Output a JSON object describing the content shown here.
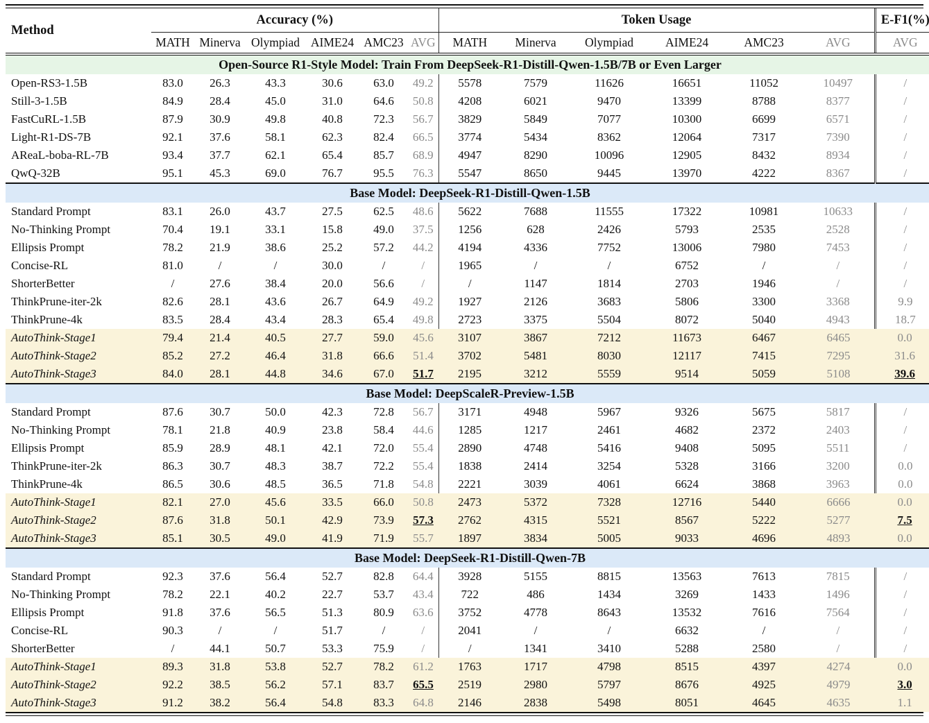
{
  "table": {
    "method_header": "Method",
    "group_acc": "Accuracy (%)",
    "group_tok": "Token Usage",
    "group_ef1": "E-F1(%)",
    "subheaders_acc": [
      "MATH",
      "Minerva",
      "Olympiad",
      "AIME24",
      "AMC23",
      "AVG"
    ],
    "subheaders_tok": [
      "MATH",
      "Minerva",
      "Olympiad",
      "AIME24",
      "AMC23",
      "AVG"
    ],
    "subheader_ef1": "AVG",
    "colors": {
      "green_band": "#e6f5e6",
      "blue_band": "#dbe9f8",
      "cream_band": "#faf3da",
      "muted_text": "#8b8b8b"
    },
    "sections": [
      {
        "title": "Open-Source R1-Style Model: Train From DeepSeek-R1-Distill-Qwen-1.5B/7B or Even Larger",
        "band": "green",
        "rows": [
          {
            "method": "Open-RS3-1.5B",
            "cream": false,
            "acc": [
              "83.0",
              "26.3",
              "43.3",
              "30.6",
              "63.0",
              "49.2"
            ],
            "tok": [
              "5578",
              "7579",
              "11626",
              "16651",
              "11052",
              "10497"
            ],
            "ef1": "/",
            "hl_acc": false,
            "hl_ef1": false
          },
          {
            "method": "Still-3-1.5B",
            "cream": false,
            "acc": [
              "84.9",
              "28.4",
              "45.0",
              "31.0",
              "64.6",
              "50.8"
            ],
            "tok": [
              "4208",
              "6021",
              "9470",
              "13399",
              "8788",
              "8377"
            ],
            "ef1": "/",
            "hl_acc": false,
            "hl_ef1": false
          },
          {
            "method": "FastCuRL-1.5B",
            "cream": false,
            "acc": [
              "87.9",
              "30.9",
              "49.8",
              "40.8",
              "72.3",
              "56.7"
            ],
            "tok": [
              "3829",
              "5849",
              "7077",
              "10300",
              "6699",
              "6571"
            ],
            "ef1": "/",
            "hl_acc": false,
            "hl_ef1": false
          },
          {
            "method": "Light-R1-DS-7B",
            "cream": false,
            "acc": [
              "92.1",
              "37.6",
              "58.1",
              "62.3",
              "82.4",
              "66.5"
            ],
            "tok": [
              "3774",
              "5434",
              "8362",
              "12064",
              "7317",
              "7390"
            ],
            "ef1": "/",
            "hl_acc": false,
            "hl_ef1": false
          },
          {
            "method": "AReaL-boba-RL-7B",
            "cream": false,
            "acc": [
              "93.4",
              "37.7",
              "62.1",
              "65.4",
              "85.7",
              "68.9"
            ],
            "tok": [
              "4947",
              "8290",
              "10096",
              "12905",
              "8432",
              "8934"
            ],
            "ef1": "/",
            "hl_acc": false,
            "hl_ef1": false
          },
          {
            "method": "QwQ-32B",
            "cream": false,
            "acc": [
              "95.1",
              "45.3",
              "69.0",
              "76.7",
              "95.5",
              "76.3"
            ],
            "tok": [
              "5547",
              "8650",
              "9445",
              "13970",
              "4222",
              "8367"
            ],
            "ef1": "/",
            "hl_acc": false,
            "hl_ef1": false
          }
        ]
      },
      {
        "title": "Base Model: DeepSeek-R1-Distill-Qwen-1.5B",
        "band": "blue",
        "rows": [
          {
            "method": "Standard Prompt",
            "cream": false,
            "acc": [
              "83.1",
              "26.0",
              "43.7",
              "27.5",
              "62.5",
              "48.6"
            ],
            "tok": [
              "5622",
              "7688",
              "11555",
              "17322",
              "10981",
              "10633"
            ],
            "ef1": "/",
            "hl_acc": false,
            "hl_ef1": false
          },
          {
            "method": "No-Thinking Prompt",
            "cream": false,
            "acc": [
              "70.4",
              "19.1",
              "33.1",
              "15.8",
              "49.0",
              "37.5"
            ],
            "tok": [
              "1256",
              "628",
              "2426",
              "5793",
              "2535",
              "2528"
            ],
            "ef1": "/",
            "hl_acc": false,
            "hl_ef1": false
          },
          {
            "method": "Ellipsis Prompt",
            "cream": false,
            "acc": [
              "78.2",
              "21.9",
              "38.6",
              "25.2",
              "57.2",
              "44.2"
            ],
            "tok": [
              "4194",
              "4336",
              "7752",
              "13006",
              "7980",
              "7453"
            ],
            "ef1": "/",
            "hl_acc": false,
            "hl_ef1": false
          },
          {
            "method": "Concise-RL",
            "cream": false,
            "acc": [
              "81.0",
              "/",
              "/",
              "30.0",
              "/",
              "/"
            ],
            "tok": [
              "1965",
              "/",
              "/",
              "6752",
              "/",
              "/"
            ],
            "ef1": "/",
            "hl_acc": false,
            "hl_ef1": false
          },
          {
            "method": "ShorterBetter",
            "cream": false,
            "acc": [
              "/",
              "27.6",
              "38.4",
              "20.0",
              "56.6",
              "/"
            ],
            "tok": [
              "/",
              "1147",
              "1814",
              "2703",
              "1946",
              "/"
            ],
            "ef1": "/",
            "hl_acc": false,
            "hl_ef1": false
          },
          {
            "method": "ThinkPrune-iter-2k",
            "cream": false,
            "acc": [
              "82.6",
              "28.1",
              "43.6",
              "26.7",
              "64.9",
              "49.2"
            ],
            "tok": [
              "1927",
              "2126",
              "3683",
              "5806",
              "3300",
              "3368"
            ],
            "ef1": "9.9",
            "hl_acc": false,
            "hl_ef1": false
          },
          {
            "method": "ThinkPrune-4k",
            "cream": false,
            "acc": [
              "83.5",
              "28.4",
              "43.4",
              "28.3",
              "65.4",
              "49.8"
            ],
            "tok": [
              "2723",
              "3375",
              "5504",
              "8072",
              "5040",
              "4943"
            ],
            "ef1": "18.7",
            "hl_acc": false,
            "hl_ef1": false
          },
          {
            "method": "AutoThink-Stage1",
            "cream": true,
            "acc": [
              "79.4",
              "21.4",
              "40.5",
              "27.7",
              "59.0",
              "45.6"
            ],
            "tok": [
              "3107",
              "3867",
              "7212",
              "11673",
              "6467",
              "6465"
            ],
            "ef1": "0.0",
            "hl_acc": false,
            "hl_ef1": false
          },
          {
            "method": "AutoThink-Stage2",
            "cream": true,
            "acc": [
              "85.2",
              "27.2",
              "46.4",
              "31.8",
              "66.6",
              "51.4"
            ],
            "tok": [
              "3702",
              "5481",
              "8030",
              "12117",
              "7415",
              "7295"
            ],
            "ef1": "31.6",
            "hl_acc": false,
            "hl_ef1": false
          },
          {
            "method": "AutoThink-Stage3",
            "cream": true,
            "acc": [
              "84.0",
              "28.1",
              "44.8",
              "34.6",
              "67.0",
              "51.7"
            ],
            "tok": [
              "2195",
              "3212",
              "5559",
              "9514",
              "5059",
              "5108"
            ],
            "ef1": "39.6",
            "hl_acc": true,
            "hl_ef1": true
          }
        ]
      },
      {
        "title": "Base Model: DeepScaleR-Preview-1.5B",
        "band": "blue",
        "rows": [
          {
            "method": "Standard Prompt",
            "cream": false,
            "acc": [
              "87.6",
              "30.7",
              "50.0",
              "42.3",
              "72.8",
              "56.7"
            ],
            "tok": [
              "3171",
              "4948",
              "5967",
              "9326",
              "5675",
              "5817"
            ],
            "ef1": "/",
            "hl_acc": false,
            "hl_ef1": false
          },
          {
            "method": "No-Thinking Prompt",
            "cream": false,
            "acc": [
              "78.1",
              "21.8",
              "40.9",
              "23.8",
              "58.4",
              "44.6"
            ],
            "tok": [
              "1285",
              "1217",
              "2461",
              "4682",
              "2372",
              "2403"
            ],
            "ef1": "/",
            "hl_acc": false,
            "hl_ef1": false
          },
          {
            "method": "Ellipsis Prompt",
            "cream": false,
            "acc": [
              "85.9",
              "28.9",
              "48.1",
              "42.1",
              "72.0",
              "55.4"
            ],
            "tok": [
              "2890",
              "4748",
              "5416",
              "9408",
              "5095",
              "5511"
            ],
            "ef1": "/",
            "hl_acc": false,
            "hl_ef1": false
          },
          {
            "method": "ThinkPrune-iter-2k",
            "cream": false,
            "acc": [
              "86.3",
              "30.7",
              "48.3",
              "38.7",
              "72.2",
              "55.4"
            ],
            "tok": [
              "1838",
              "2414",
              "3254",
              "5328",
              "3166",
              "3200"
            ],
            "ef1": "0.0",
            "hl_acc": false,
            "hl_ef1": false
          },
          {
            "method": "ThinkPrune-4k",
            "cream": false,
            "acc": [
              "86.5",
              "30.6",
              "48.5",
              "36.5",
              "71.8",
              "54.8"
            ],
            "tok": [
              "2221",
              "3039",
              "4061",
              "6624",
              "3868",
              "3963"
            ],
            "ef1": "0.0",
            "hl_acc": false,
            "hl_ef1": false
          },
          {
            "method": "AutoThink-Stage1",
            "cream": true,
            "acc": [
              "82.1",
              "27.0",
              "45.6",
              "33.5",
              "66.0",
              "50.8"
            ],
            "tok": [
              "2473",
              "5372",
              "7328",
              "12716",
              "5440",
              "6666"
            ],
            "ef1": "0.0",
            "hl_acc": false,
            "hl_ef1": false
          },
          {
            "method": "AutoThink-Stage2",
            "cream": true,
            "acc": [
              "87.6",
              "31.8",
              "50.1",
              "42.9",
              "73.9",
              "57.3"
            ],
            "tok": [
              "2762",
              "4315",
              "5521",
              "8567",
              "5222",
              "5277"
            ],
            "ef1": "7.5",
            "hl_acc": true,
            "hl_ef1": true
          },
          {
            "method": "AutoThink-Stage3",
            "cream": true,
            "acc": [
              "85.1",
              "30.5",
              "49.0",
              "41.9",
              "71.9",
              "55.7"
            ],
            "tok": [
              "1897",
              "3834",
              "5005",
              "9033",
              "4696",
              "4893"
            ],
            "ef1": "0.0",
            "hl_acc": false,
            "hl_ef1": false
          }
        ]
      },
      {
        "title": "Base Model: DeepSeek-R1-Distill-Qwen-7B",
        "band": "blue",
        "rows": [
          {
            "method": "Standard Prompt",
            "cream": false,
            "acc": [
              "92.3",
              "37.6",
              "56.4",
              "52.7",
              "82.8",
              "64.4"
            ],
            "tok": [
              "3928",
              "5155",
              "8815",
              "13563",
              "7613",
              "7815"
            ],
            "ef1": "/",
            "hl_acc": false,
            "hl_ef1": false
          },
          {
            "method": "No-Thinking Prompt",
            "cream": false,
            "acc": [
              "78.2",
              "22.1",
              "40.2",
              "22.7",
              "53.7",
              "43.4"
            ],
            "tok": [
              "722",
              "486",
              "1434",
              "3269",
              "1433",
              "1496"
            ],
            "ef1": "/",
            "hl_acc": false,
            "hl_ef1": false
          },
          {
            "method": "Ellipsis Prompt",
            "cream": false,
            "acc": [
              "91.8",
              "37.6",
              "56.5",
              "51.3",
              "80.9",
              "63.6"
            ],
            "tok": [
              "3752",
              "4778",
              "8643",
              "13532",
              "7616",
              "7564"
            ],
            "ef1": "/",
            "hl_acc": false,
            "hl_ef1": false
          },
          {
            "method": "Concise-RL",
            "cream": false,
            "acc": [
              "90.3",
              "/",
              "/",
              "51.7",
              "/",
              "/"
            ],
            "tok": [
              "2041",
              "/",
              "/",
              "6632",
              "/",
              "/"
            ],
            "ef1": "/",
            "hl_acc": false,
            "hl_ef1": false
          },
          {
            "method": "ShorterBetter",
            "cream": false,
            "acc": [
              "/",
              "44.1",
              "50.7",
              "53.3",
              "75.9",
              "/"
            ],
            "tok": [
              "/",
              "1341",
              "3410",
              "5288",
              "2580",
              "/"
            ],
            "ef1": "/",
            "hl_acc": false,
            "hl_ef1": false
          },
          {
            "method": "AutoThink-Stage1",
            "cream": true,
            "acc": [
              "89.3",
              "31.8",
              "53.8",
              "52.7",
              "78.2",
              "61.2"
            ],
            "tok": [
              "1763",
              "1717",
              "4798",
              "8515",
              "4397",
              "4274"
            ],
            "ef1": "0.0",
            "hl_acc": false,
            "hl_ef1": false
          },
          {
            "method": "AutoThink-Stage2",
            "cream": true,
            "acc": [
              "92.2",
              "38.5",
              "56.2",
              "57.1",
              "83.7",
              "65.5"
            ],
            "tok": [
              "2519",
              "2980",
              "5797",
              "8676",
              "4925",
              "4979"
            ],
            "ef1": "3.0",
            "hl_acc": true,
            "hl_ef1": true
          },
          {
            "method": "AutoThink-Stage3",
            "cream": true,
            "acc": [
              "91.2",
              "38.2",
              "56.4",
              "54.8",
              "83.3",
              "64.8"
            ],
            "tok": [
              "2146",
              "2838",
              "5498",
              "8051",
              "4645",
              "4635"
            ],
            "ef1": "1.1",
            "hl_acc": false,
            "hl_ef1": false
          }
        ]
      }
    ]
  }
}
